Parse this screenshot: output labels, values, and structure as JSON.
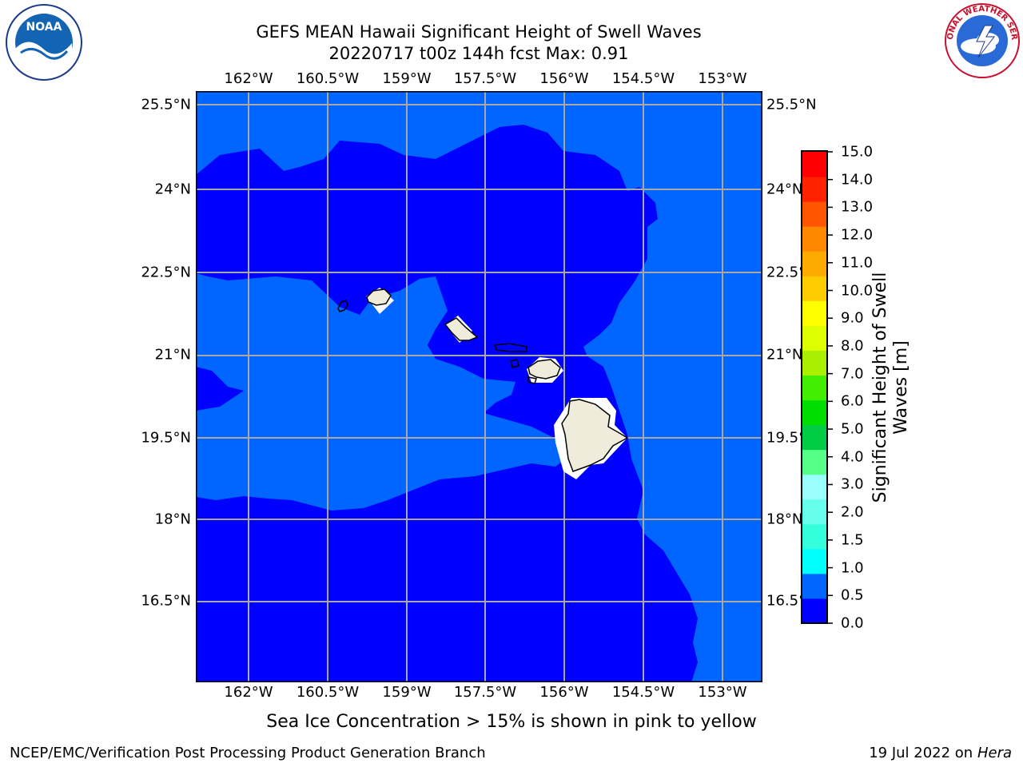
{
  "header": {
    "title": "GEFS MEAN Hawaii Significant Height of Swell Waves",
    "subtitle": "20220717 t00z 144h fcst   Max: 0.91"
  },
  "map": {
    "lon_ticks": [
      "162°W",
      "160.5°W",
      "159°W",
      "157.5°W",
      "156°W",
      "154.5°W",
      "153°W"
    ],
    "lat_ticks": [
      "25.5°N",
      "24°N",
      "22.5°N",
      "21°N",
      "19.5°N",
      "18°N",
      "16.5°N"
    ],
    "lon_range": [
      -163,
      -152.7
    ],
    "lat_range": [
      15.3,
      26.0
    ],
    "colors": {
      "ocean_dark": "#0000ff",
      "ocean_light": "#0066ff",
      "land": "#efecdc",
      "grid": "#a8a8a8"
    }
  },
  "colorbar": {
    "title_line1": "Significant Height of Swell",
    "title_line2": "Waves [m]",
    "ticks": [
      "0.0",
      "0.5",
      "1.0",
      "1.5",
      "2.0",
      "3.0",
      "4.0",
      "5.0",
      "6.0",
      "7.0",
      "8.0",
      "9.0",
      "10.0",
      "11.0",
      "12.0",
      "13.0",
      "14.0",
      "15.0"
    ],
    "colors": [
      "#0000ff",
      "#0066ff",
      "#00ffff",
      "#33ffdd",
      "#66ffee",
      "#99ffff",
      "#55ff88",
      "#00cc44",
      "#00dd00",
      "#44ee00",
      "#aaee00",
      "#ddff00",
      "#ffff00",
      "#ffcc00",
      "#ffaa00",
      "#ff8800",
      "#ff5500",
      "#ff2200",
      "#ff0000"
    ]
  },
  "note": "Sea Ice Concentration > 15% is shown in pink to yellow",
  "footer": {
    "left": "NCEP/EMC/Verification Post Processing Product Generation Branch",
    "right_date": "19 Jul 2022 on ",
    "right_host": "Hera"
  },
  "logos": {
    "noaa_text": "NOAA",
    "nws_text": "NATIONAL WEATHER SERVICE"
  }
}
